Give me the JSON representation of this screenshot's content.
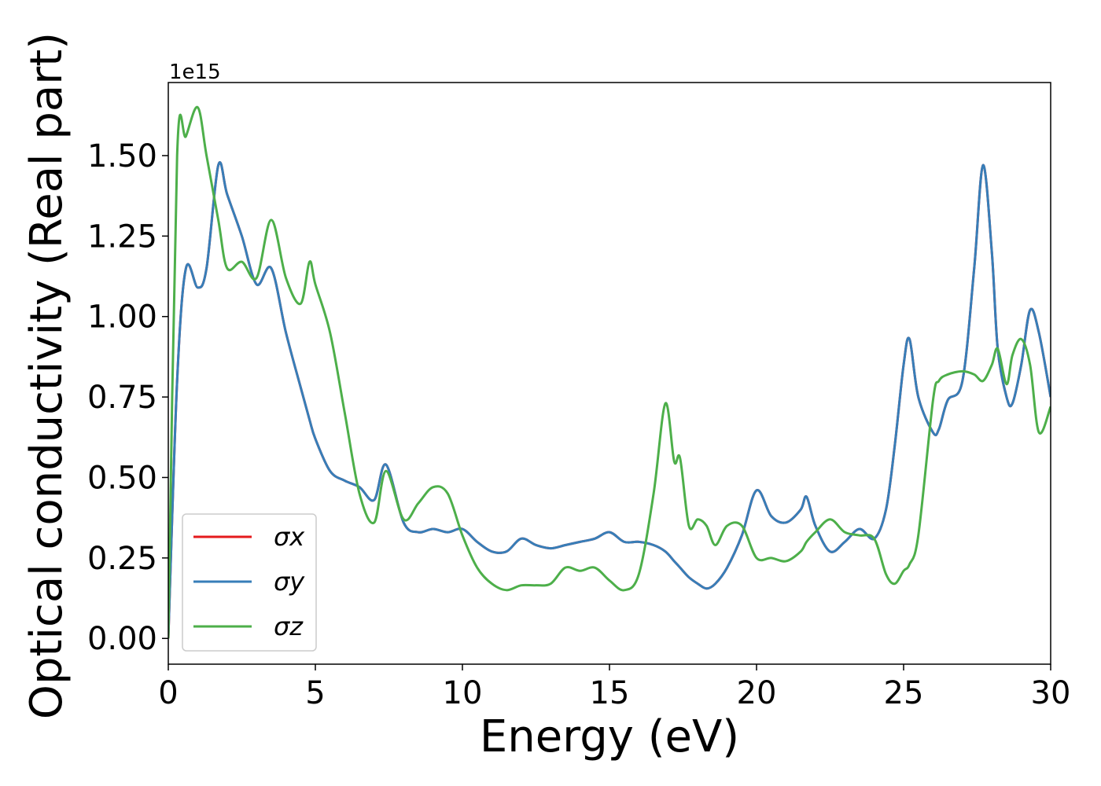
{
  "chart_data": {
    "type": "line",
    "xlabel": "Energy (eV)",
    "ylabel": "Optical conductivity (Real part)",
    "y_offset_label": "1e15",
    "x": [
      0,
      0.3,
      0.6,
      1,
      1.3,
      1.7,
      2,
      2.5,
      3,
      3.5,
      4,
      4.5,
      4.8,
      5,
      5.5,
      6,
      6.5,
      7,
      7.4,
      8,
      8.5,
      9,
      9.5,
      10,
      10.5,
      11,
      11.5,
      12,
      12.5,
      13,
      13.5,
      14,
      14.5,
      15,
      15.5,
      16,
      16.5,
      16.9,
      17.2,
      17.4,
      17.7,
      18,
      18.3,
      18.6,
      19,
      19.5,
      20,
      20.5,
      21,
      21.5,
      21.7,
      22,
      22.5,
      23,
      23.5,
      24,
      24.4,
      24.7,
      25,
      25.2,
      25.5,
      26,
      26.2,
      26.5,
      27,
      27.4,
      27.7,
      28,
      28.2,
      28.5,
      28.7,
      29,
      29.3,
      29.6,
      30
    ],
    "series": [
      {
        "name": "σx",
        "color": "#e41a1c",
        "values": [
          0,
          0.8,
          1.15,
          1.09,
          1.15,
          1.47,
          1.38,
          1.25,
          1.1,
          1.15,
          0.95,
          0.78,
          0.68,
          0.62,
          0.52,
          0.49,
          0.47,
          0.43,
          0.54,
          0.36,
          0.33,
          0.34,
          0.33,
          0.34,
          0.3,
          0.27,
          0.27,
          0.31,
          0.29,
          0.28,
          0.29,
          0.3,
          0.31,
          0.33,
          0.3,
          0.3,
          0.29,
          0.27,
          0.24,
          0.22,
          0.19,
          0.17,
          0.155,
          0.17,
          0.22,
          0.32,
          0.46,
          0.38,
          0.36,
          0.4,
          0.44,
          0.35,
          0.27,
          0.3,
          0.34,
          0.31,
          0.4,
          0.6,
          0.85,
          0.93,
          0.75,
          0.64,
          0.65,
          0.74,
          0.8,
          1.15,
          1.47,
          1.2,
          0.9,
          0.75,
          0.73,
          0.85,
          1.02,
          0.95,
          0.75
        ]
      },
      {
        "name": "σy",
        "color": "#377eb8",
        "values": [
          0,
          0.8,
          1.15,
          1.09,
          1.15,
          1.47,
          1.38,
          1.25,
          1.1,
          1.15,
          0.95,
          0.78,
          0.68,
          0.62,
          0.52,
          0.49,
          0.47,
          0.43,
          0.54,
          0.36,
          0.33,
          0.34,
          0.33,
          0.34,
          0.3,
          0.27,
          0.27,
          0.31,
          0.29,
          0.28,
          0.29,
          0.3,
          0.31,
          0.33,
          0.3,
          0.3,
          0.29,
          0.27,
          0.24,
          0.22,
          0.19,
          0.17,
          0.155,
          0.17,
          0.22,
          0.32,
          0.46,
          0.38,
          0.36,
          0.4,
          0.44,
          0.35,
          0.27,
          0.3,
          0.34,
          0.31,
          0.4,
          0.6,
          0.85,
          0.93,
          0.75,
          0.64,
          0.65,
          0.74,
          0.8,
          1.15,
          1.47,
          1.2,
          0.9,
          0.75,
          0.73,
          0.85,
          1.02,
          0.95,
          0.75
        ]
      },
      {
        "name": "σz",
        "color": "#4daf4a",
        "values": [
          0,
          1.5,
          1.56,
          1.65,
          1.5,
          1.3,
          1.15,
          1.17,
          1.12,
          1.3,
          1.12,
          1.04,
          1.17,
          1.1,
          0.95,
          0.7,
          0.45,
          0.36,
          0.52,
          0.37,
          0.42,
          0.47,
          0.45,
          0.32,
          0.22,
          0.17,
          0.15,
          0.165,
          0.165,
          0.17,
          0.22,
          0.21,
          0.22,
          0.18,
          0.15,
          0.2,
          0.45,
          0.73,
          0.55,
          0.56,
          0.35,
          0.37,
          0.35,
          0.29,
          0.35,
          0.35,
          0.25,
          0.25,
          0.24,
          0.27,
          0.3,
          0.33,
          0.37,
          0.33,
          0.32,
          0.31,
          0.2,
          0.17,
          0.21,
          0.23,
          0.32,
          0.74,
          0.8,
          0.82,
          0.83,
          0.82,
          0.8,
          0.85,
          0.9,
          0.79,
          0.88,
          0.93,
          0.85,
          0.64,
          0.72
        ]
      }
    ],
    "xlim": [
      0,
      30
    ],
    "ylim": [
      -0.08,
      1.727
    ],
    "xticks": [
      0,
      5,
      10,
      15,
      20,
      25,
      30
    ],
    "yticks": [
      {
        "value": 0,
        "label": "0.00"
      },
      {
        "value": 0.25,
        "label": "0.25"
      },
      {
        "value": 0.5,
        "label": "0.50"
      },
      {
        "value": 0.75,
        "label": "0.75"
      },
      {
        "value": 1,
        "label": "1.00"
      },
      {
        "value": 1.25,
        "label": "1.25"
      },
      {
        "value": 1.5,
        "label": "1.50"
      }
    ],
    "grid": false,
    "legend": "lower left"
  }
}
